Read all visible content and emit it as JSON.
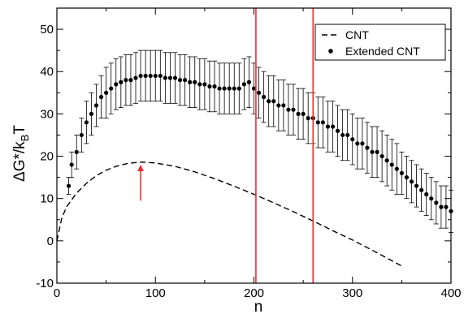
{
  "chart_data": {
    "type": "scatter",
    "xlabel": "n",
    "ylabel": {
      "prefix": "ΔG*/k",
      "sub": "B",
      "suffix": "T"
    },
    "xlim": [
      0,
      400
    ],
    "ylim": [
      -10,
      55
    ],
    "xticks": [
      0,
      100,
      200,
      300,
      400
    ],
    "yticks": [
      -10,
      0,
      10,
      20,
      30,
      40,
      50
    ],
    "grid": false,
    "legend_position": "top-right",
    "colors": {
      "axis": "#000000",
      "data": "#000000",
      "markers": "#e8303a"
    },
    "series": [
      {
        "name": "CNT",
        "style": "dashed-line",
        "points": [
          [
            0,
            0
          ],
          [
            5,
            5.4
          ],
          [
            10,
            8.1
          ],
          [
            20,
            11.3
          ],
          [
            30,
            13.6
          ],
          [
            40,
            15.4
          ],
          [
            50,
            16.7
          ],
          [
            60,
            17.6
          ],
          [
            70,
            18.2
          ],
          [
            80,
            18.5
          ],
          [
            87,
            18.6
          ],
          [
            100,
            18.4
          ],
          [
            120,
            17.6
          ],
          [
            140,
            16.3
          ],
          [
            160,
            14.7
          ],
          [
            180,
            12.9
          ],
          [
            200,
            11.0
          ],
          [
            220,
            9.0
          ],
          [
            240,
            6.9
          ],
          [
            260,
            4.7
          ],
          [
            280,
            2.4
          ],
          [
            300,
            0.2
          ],
          [
            320,
            -2.2
          ],
          [
            340,
            -4.7
          ],
          [
            352,
            -6.2
          ]
        ]
      },
      {
        "name": "Extended CNT",
        "style": "points-with-errorbars",
        "points": [
          [
            12,
            13,
            2
          ],
          [
            15,
            18,
            3
          ],
          [
            20,
            21,
            4
          ],
          [
            25,
            25,
            4
          ],
          [
            30,
            28,
            5
          ],
          [
            35,
            30,
            5
          ],
          [
            40,
            32,
            5
          ],
          [
            45,
            34,
            5
          ],
          [
            50,
            35,
            6
          ],
          [
            55,
            36,
            6
          ],
          [
            60,
            37,
            6
          ],
          [
            65,
            37.5,
            6
          ],
          [
            70,
            38,
            6
          ],
          [
            75,
            38,
            6
          ],
          [
            80,
            38.5,
            6
          ],
          [
            85,
            39,
            6
          ],
          [
            90,
            39,
            6
          ],
          [
            95,
            39,
            6
          ],
          [
            100,
            39,
            6
          ],
          [
            105,
            39,
            6
          ],
          [
            110,
            38.5,
            6
          ],
          [
            115,
            38.5,
            6
          ],
          [
            120,
            38.5,
            6
          ],
          [
            125,
            38,
            6
          ],
          [
            130,
            38,
            6
          ],
          [
            135,
            37.5,
            6
          ],
          [
            140,
            37.5,
            6
          ],
          [
            145,
            37,
            6
          ],
          [
            150,
            37,
            6
          ],
          [
            155,
            36.5,
            6
          ],
          [
            160,
            36.5,
            6
          ],
          [
            165,
            36,
            6
          ],
          [
            170,
            36,
            6
          ],
          [
            175,
            36,
            6
          ],
          [
            180,
            36,
            6
          ],
          [
            185,
            36,
            6
          ],
          [
            190,
            37,
            6
          ],
          [
            195,
            37.5,
            6
          ],
          [
            200,
            36,
            6
          ],
          [
            205,
            35,
            6
          ],
          [
            210,
            34,
            6
          ],
          [
            215,
            33,
            6
          ],
          [
            220,
            33,
            6
          ],
          [
            225,
            32,
            6
          ],
          [
            230,
            32,
            6
          ],
          [
            235,
            31,
            6
          ],
          [
            240,
            31,
            6
          ],
          [
            245,
            30,
            6
          ],
          [
            250,
            30,
            6
          ],
          [
            255,
            29,
            6
          ],
          [
            260,
            29,
            6
          ],
          [
            265,
            28,
            6
          ],
          [
            270,
            28,
            6
          ],
          [
            275,
            27,
            6
          ],
          [
            280,
            27,
            6
          ],
          [
            285,
            26,
            6
          ],
          [
            290,
            25,
            6
          ],
          [
            295,
            25,
            6
          ],
          [
            300,
            24,
            6
          ],
          [
            305,
            23,
            6
          ],
          [
            310,
            23,
            6
          ],
          [
            315,
            22,
            6
          ],
          [
            320,
            21,
            6
          ],
          [
            325,
            21,
            6
          ],
          [
            330,
            20,
            6
          ],
          [
            335,
            19,
            6
          ],
          [
            340,
            18,
            6
          ],
          [
            345,
            17,
            6
          ],
          [
            350,
            16,
            5
          ],
          [
            355,
            15,
            5
          ],
          [
            360,
            14,
            5
          ],
          [
            365,
            13,
            5
          ],
          [
            370,
            12,
            5
          ],
          [
            375,
            11,
            5
          ],
          [
            380,
            10,
            5
          ],
          [
            385,
            9,
            5
          ],
          [
            390,
            8,
            5
          ],
          [
            395,
            8,
            5
          ],
          [
            400,
            7,
            5
          ]
        ]
      }
    ],
    "vertical_lines": [
      {
        "x": 202,
        "color": "#e8303a"
      },
      {
        "x": 260,
        "color": "#e8303a"
      }
    ],
    "arrow": {
      "x": 85,
      "y_from": 9.5,
      "y_to": 18,
      "color": "#e8303a"
    }
  }
}
